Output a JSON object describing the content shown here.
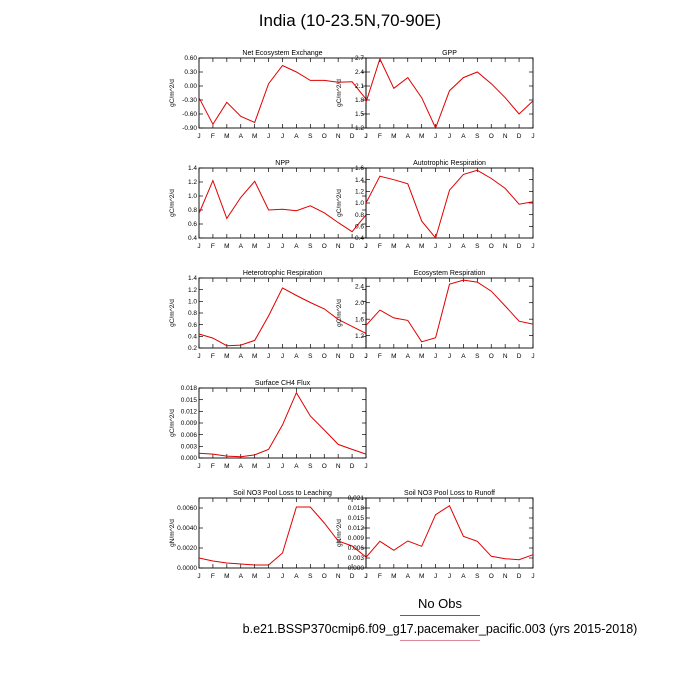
{
  "title": "India (10-23.5N,70-90E)",
  "legend": {
    "label": "No Obs",
    "line_color": "#5a5aa8"
  },
  "case_name": "b.e21.BSSP370cmip6.f09_g17.pacemaker_pacific.003 (yrs 2015-2018)",
  "case_underline_color": "#d88a9a",
  "line_color": "#e00000",
  "months": [
    "J",
    "F",
    "M",
    "A",
    "M",
    "J",
    "J",
    "A",
    "S",
    "O",
    "N",
    "D",
    "J"
  ],
  "chart_data": [
    {
      "type": "line",
      "title": "Net Ecosystem Exchange",
      "ylabel": "gC/m^2/d",
      "ylim": [
        -0.9,
        0.6
      ],
      "yticks": [
        "0.60",
        "0.30",
        "0.00",
        "-0.30",
        "-0.60",
        "-0.90"
      ],
      "ytick_values": [
        0.6,
        0.3,
        0.0,
        -0.3,
        -0.6,
        -0.9
      ],
      "values": [
        -0.25,
        -0.82,
        -0.35,
        -0.65,
        -0.78,
        0.05,
        0.44,
        0.3,
        0.12,
        0.12,
        0.08,
        0.09,
        -0.28
      ]
    },
    {
      "type": "line",
      "title": "GPP",
      "ylabel": "gC/m^2/d",
      "ylim": [
        1.2,
        2.7
      ],
      "yticks": [
        "2.7",
        "2.4",
        "2.1",
        "1.8",
        "1.5",
        "1.2"
      ],
      "ytick_values": [
        2.7,
        2.4,
        2.1,
        1.8,
        1.5,
        1.2
      ],
      "values": [
        1.75,
        2.68,
        2.05,
        2.28,
        1.85,
        1.2,
        2.0,
        2.28,
        2.4,
        2.15,
        1.85,
        1.5,
        1.78
      ]
    },
    {
      "type": "line",
      "title": "NPP",
      "ylabel": "gC/m^2/d",
      "ylim": [
        0.4,
        1.4
      ],
      "yticks": [
        "1.4",
        "1.2",
        "1.0",
        "0.8",
        "0.6",
        "0.4"
      ],
      "ytick_values": [
        1.4,
        1.2,
        1.0,
        0.8,
        0.6,
        0.4
      ],
      "values": [
        0.75,
        1.22,
        0.68,
        0.98,
        1.21,
        0.8,
        0.81,
        0.79,
        0.86,
        0.76,
        0.62,
        0.49,
        0.73
      ]
    },
    {
      "type": "line",
      "title": "Autotrophic Respiration",
      "ylabel": "gC/m^2/d",
      "ylim": [
        0.4,
        1.6
      ],
      "yticks": [
        "1.6",
        "1.4",
        "1.2",
        "1.0",
        "0.8",
        "0.6",
        "0.4"
      ],
      "ytick_values": [
        1.6,
        1.4,
        1.2,
        1.0,
        0.8,
        0.6,
        0.4
      ],
      "values": [
        1.0,
        1.46,
        1.4,
        1.33,
        0.69,
        0.4,
        1.22,
        1.49,
        1.56,
        1.42,
        1.25,
        0.98,
        1.02
      ]
    },
    {
      "type": "line",
      "title": "Heterotrophic Respiration",
      "ylabel": "gC/m^2/d",
      "ylim": [
        0.2,
        1.4
      ],
      "yticks": [
        "1.4",
        "1.2",
        "1.0",
        "0.8",
        "0.6",
        "0.4",
        "0.2"
      ],
      "ytick_values": [
        1.4,
        1.2,
        1.0,
        0.8,
        0.6,
        0.4,
        0.2
      ],
      "values": [
        0.44,
        0.37,
        0.24,
        0.25,
        0.33,
        0.75,
        1.23,
        1.1,
        0.98,
        0.87,
        0.69,
        0.57,
        0.45
      ]
    },
    {
      "type": "line",
      "title": "Ecosystem Respiration",
      "ylabel": "gC/m^2/d",
      "ylim": [
        0.9,
        2.6
      ],
      "yticks": [
        "2.4",
        "2.0",
        "1.6",
        "1.2"
      ],
      "ytick_values": [
        2.4,
        2.0,
        1.6,
        1.2
      ],
      "values": [
        1.45,
        1.82,
        1.63,
        1.57,
        1.05,
        1.15,
        2.45,
        2.55,
        2.5,
        2.28,
        1.92,
        1.55,
        1.48
      ]
    },
    {
      "type": "line",
      "title": "Surface CH4 Flux",
      "ylabel": "gC/m^2/d",
      "ylim": [
        0.0,
        0.018
      ],
      "yticks": [
        "0.018",
        "0.015",
        "0.012",
        "0.009",
        "0.006",
        "0.003",
        "0.000"
      ],
      "ytick_values": [
        0.018,
        0.015,
        0.012,
        0.009,
        0.006,
        0.003,
        0.0
      ],
      "values": [
        0.0012,
        0.001,
        0.0005,
        0.0003,
        0.0008,
        0.0022,
        0.0085,
        0.0168,
        0.0108,
        0.0072,
        0.0035,
        0.0022,
        0.001
      ]
    },
    null,
    {
      "type": "line",
      "title": "Soil NO3 Pool Loss to Leaching",
      "ylabel": "gN/m^2/d",
      "ylim": [
        0.0,
        0.007
      ],
      "yticks": [
        "0.0060",
        "0.0040",
        "0.0020",
        "0.0000"
      ],
      "ytick_values": [
        0.006,
        0.004,
        0.002,
        0.0
      ],
      "values": [
        0.001,
        0.0007,
        0.0005,
        0.0004,
        0.0003,
        0.0003,
        0.0015,
        0.0061,
        0.0061,
        0.0045,
        0.0027,
        0.0022,
        0.0011
      ]
    },
    {
      "type": "line",
      "title": "Soil NO3 Pool Loss to Runoff",
      "ylabel": "gN/m^2/d",
      "ylim": [
        0.0,
        0.021
      ],
      "yticks": [
        "0.021",
        "0.018",
        "0.015",
        "0.012",
        "0.009",
        "0.006",
        "0.003",
        "0.000"
      ],
      "ytick_values": [
        0.021,
        0.018,
        0.015,
        0.012,
        0.009,
        0.006,
        0.003,
        0.0
      ],
      "values": [
        0.0032,
        0.008,
        0.0053,
        0.0081,
        0.0065,
        0.016,
        0.0187,
        0.0095,
        0.008,
        0.0035,
        0.0028,
        0.0025,
        0.004
      ]
    }
  ]
}
